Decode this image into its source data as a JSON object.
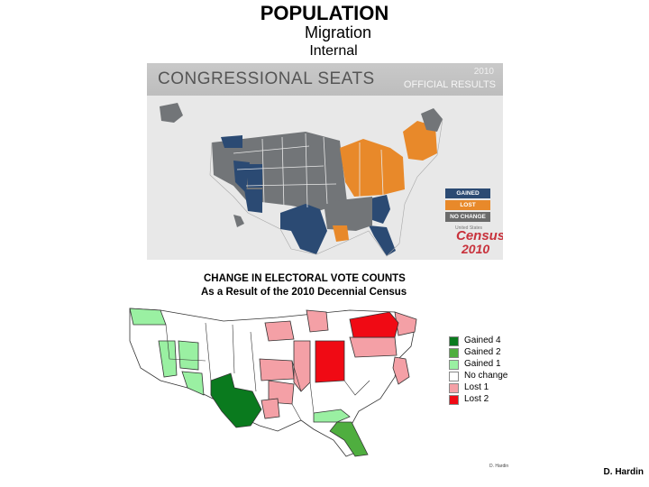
{
  "header": {
    "title": "POPULATION",
    "subtitle": "Migration",
    "subsubtitle": "Internal"
  },
  "seats_map": {
    "title": "CONGRESSIONAL SEATS",
    "year": "2010",
    "official": "OFFICIAL RESULTS",
    "legend": [
      {
        "label": "GAINED",
        "color": "#2b4a73"
      },
      {
        "label": "LOST",
        "color": "#e8892a"
      },
      {
        "label": "NO CHANGE",
        "color": "#6b6b6b"
      }
    ],
    "census_small": "United States",
    "census_word": "Census",
    "census_year": "2010",
    "colors": {
      "gained": "#2b4a73",
      "lost": "#e8892a",
      "nochange": "#727578"
    }
  },
  "ev_map": {
    "title": "CHANGE IN ELECTORAL VOTE COUNTS",
    "subtitle": "As a Result of the 2010 Decennial Census",
    "legend": [
      {
        "label": "Gained 4",
        "color": "#0a7a1e"
      },
      {
        "label": "Gained 2",
        "color": "#4fae3f"
      },
      {
        "label": "Gained 1",
        "color": "#9af0a2"
      },
      {
        "label": "No change",
        "color": "#ffffff"
      },
      {
        "label": "Lost 1",
        "color": "#f4a0a6"
      },
      {
        "label": "Lost 2",
        "color": "#f00a14"
      }
    ],
    "credit": "D. Hardin"
  },
  "credit": "D. Hardin"
}
